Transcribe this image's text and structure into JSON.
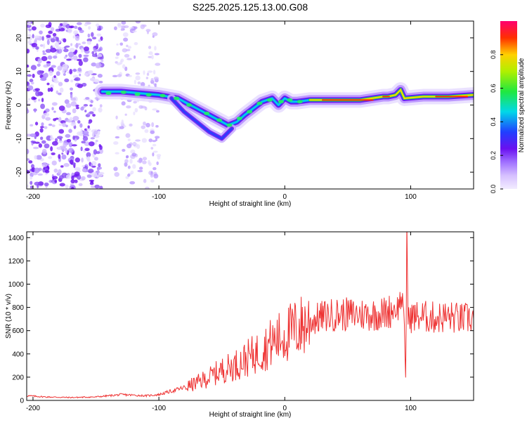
{
  "figure_title": "S225.2025.125.13.00.G08",
  "chart_data": [
    {
      "type": "heatmap",
      "title": "S225.2025.125.13.00.G08",
      "xlabel": "Height of straight line (km)",
      "ylabel": "Frequency (Hz)",
      "xlim": [
        -205,
        150
      ],
      "ylim": [
        -25,
        25
      ],
      "xticks": [
        "-200",
        "-100",
        "0",
        "100"
      ],
      "yticks": [
        "-20",
        "-10",
        "0",
        "10",
        "20"
      ],
      "ridge": {
        "x": [
          -145,
          -130,
          -115,
          -100,
          -85,
          -75,
          -65,
          -55,
          -45,
          -38,
          -32,
          -25,
          -18,
          -10,
          -5,
          0,
          5,
          10,
          20,
          40,
          60,
          78,
          82,
          88,
          92,
          95,
          110,
          130,
          150
        ],
        "y": [
          4,
          4,
          3.5,
          3,
          2,
          0,
          -2,
          -4,
          -6,
          -5,
          -3,
          -1,
          1,
          2,
          0,
          2,
          1,
          1,
          1.5,
          1.5,
          1.5,
          2.5,
          2.5,
          3,
          4.5,
          2,
          2.5,
          2.5,
          3
        ]
      },
      "colorbar": {
        "label": "Normalized spectral amplitude",
        "range": [
          0,
          1
        ],
        "ticks": [
          "0.0",
          "0.2",
          "0.4",
          "0.6",
          "0.8"
        ]
      }
    },
    {
      "type": "line",
      "xlabel": "Height of straight line (km)",
      "ylabel": "SNR (10 * v/v)",
      "xlim": [
        -205,
        150
      ],
      "ylim": [
        0,
        1450
      ],
      "xticks": [
        "-200",
        "-100",
        "0",
        "100"
      ],
      "yticks": [
        "0",
        "200",
        "400",
        "600",
        "800",
        "1000",
        "1200",
        "1400"
      ],
      "color": "#ee3333",
      "series": [
        {
          "x": [
            -205,
            -190,
            -170,
            -150,
            -130,
            -110,
            -100,
            -90,
            -80,
            -70,
            -60,
            -50,
            -40,
            -30,
            -20,
            -10,
            0,
            10,
            20,
            30,
            40,
            50,
            60,
            70,
            80,
            85,
            90,
            93,
            95,
            96,
            97,
            98,
            100,
            110,
            120,
            130,
            140,
            150
          ],
          "y": [
            40,
            30,
            25,
            30,
            50,
            40,
            50,
            80,
            110,
            150,
            200,
            260,
            300,
            360,
            420,
            500,
            560,
            620,
            680,
            720,
            740,
            740,
            740,
            740,
            750,
            780,
            800,
            900,
            600,
            200,
            1450,
            700,
            720,
            720,
            710,
            720,
            700,
            710
          ]
        }
      ]
    }
  ]
}
